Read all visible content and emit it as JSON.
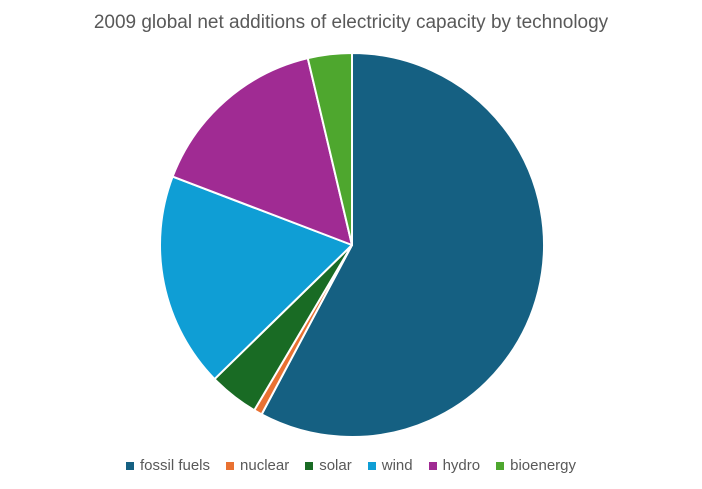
{
  "chart_data": {
    "type": "pie",
    "title": "2009 global net additions of electricity capacity by technology",
    "legend_position": "bottom",
    "categories": [
      "fossil fuels",
      "nuclear",
      "solar",
      "wind",
      "hydro",
      "bioenergy"
    ],
    "values": [
      57.8,
      0.7,
      4.2,
      18.1,
      15.5,
      3.7
    ],
    "colors": [
      "#156082",
      "#E97132",
      "#196B24",
      "#0F9ED5",
      "#A02B93",
      "#4EA72E"
    ]
  }
}
